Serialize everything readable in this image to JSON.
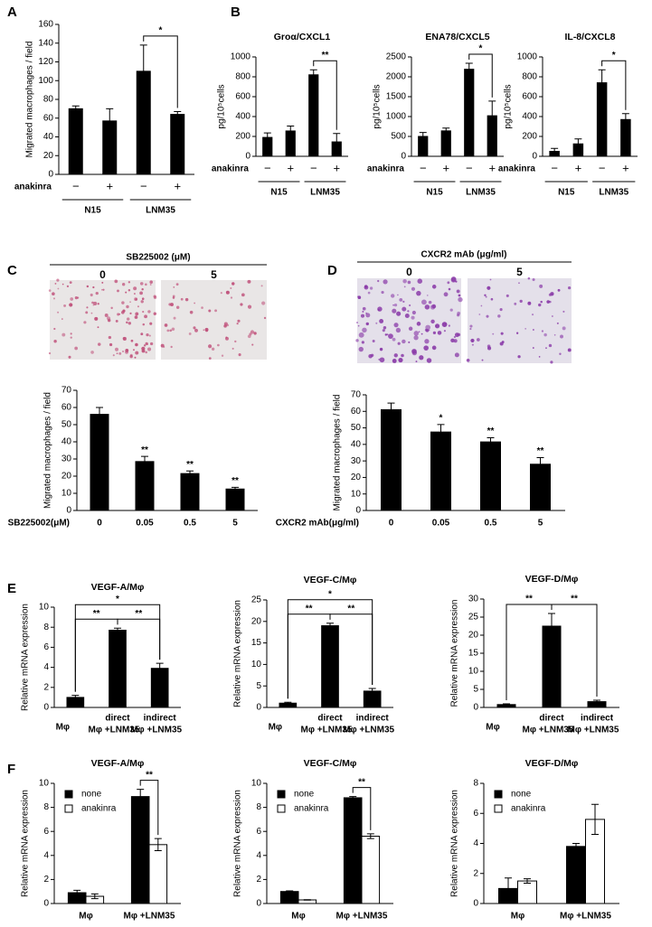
{
  "chart_data": [
    {
      "type": "bar",
      "panel": "A",
      "ylabel": "Migrated macrophages / field",
      "ylim": [
        0,
        160
      ],
      "yticks": [
        0,
        20,
        40,
        60,
        80,
        100,
        120,
        140,
        160
      ],
      "categories": [
        "−",
        "+",
        "−",
        "+"
      ],
      "category_label": "anakinra",
      "groups": [
        "N15",
        "LNM35"
      ],
      "series": [
        {
          "color": "#000000",
          "values": [
            70,
            57,
            110,
            64
          ],
          "errors": [
            3,
            13,
            28,
            3
          ]
        }
      ],
      "brackets": [
        {
          "label": "*",
          "from": 2,
          "to": 3
        }
      ]
    },
    {
      "type": "bar",
      "panel": "B",
      "title": "Groα/CXCL1",
      "ylabel": "pg/10⁵cells",
      "ylim": [
        0,
        1000
      ],
      "yticks": [
        0,
        200,
        400,
        600,
        800,
        1000
      ],
      "categories": [
        "−",
        "+",
        "−",
        "+"
      ],
      "category_label": "anakinra",
      "groups": [
        "N15",
        "LNM35"
      ],
      "series": [
        {
          "color": "#000000",
          "values": [
            190,
            255,
            820,
            145
          ],
          "errors": [
            45,
            50,
            50,
            85
          ]
        }
      ],
      "brackets": [
        {
          "label": "**",
          "from": 2,
          "to": 3
        }
      ]
    },
    {
      "type": "bar",
      "title": "ENA78/CXCL5",
      "ylabel": "pg/10⁵cells",
      "ylim": [
        0,
        2500
      ],
      "yticks": [
        0,
        500,
        1000,
        1500,
        2000,
        2500
      ],
      "categories": [
        "−",
        "+",
        "−",
        "+"
      ],
      "category_label": "anakinra",
      "groups": [
        "N15",
        "LNM35"
      ],
      "series": [
        {
          "color": "#000000",
          "values": [
            500,
            640,
            2190,
            1020
          ],
          "errors": [
            100,
            70,
            150,
            370
          ]
        }
      ],
      "brackets": [
        {
          "label": "*",
          "from": 2,
          "to": 3
        }
      ]
    },
    {
      "type": "bar",
      "title": "IL-8/CXCL8",
      "ylabel": "pg/10⁵cells",
      "ylim": [
        0,
        1000
      ],
      "yticks": [
        0,
        200,
        400,
        600,
        800,
        1000
      ],
      "categories": [
        "−",
        "+",
        "−",
        "+"
      ],
      "category_label": "anakinra",
      "groups": [
        "N15",
        "LNM35"
      ],
      "series": [
        {
          "color": "#000000",
          "values": [
            50,
            125,
            740,
            370
          ],
          "errors": [
            30,
            50,
            130,
            60
          ]
        }
      ],
      "brackets": [
        {
          "label": "*",
          "from": 2,
          "to": 3
        }
      ]
    },
    {
      "type": "bar",
      "panel": "C",
      "treatment": "SB225002 (μM)",
      "image_labels": [
        "0",
        "5"
      ],
      "ylabel": "Migrated macrophages / field",
      "ylim": [
        0,
        70
      ],
      "yticks": [
        0,
        10,
        20,
        30,
        40,
        50,
        60,
        70
      ],
      "categories": [
        "0",
        "0.05",
        "0.5",
        "5"
      ],
      "category_label": "SB225002(μM)",
      "series": [
        {
          "color": "#000000",
          "values": [
            56,
            28.5,
            21.5,
            12.5
          ],
          "errors": [
            4,
            3,
            1.5,
            1
          ]
        }
      ],
      "annotations": [
        null,
        "**",
        "**",
        "**"
      ]
    },
    {
      "type": "bar",
      "panel": "D",
      "treatment": "CXCR2 mAb (μg/ml)",
      "image_labels": [
        "0",
        "5"
      ],
      "ylabel": "Migrated macrophages / field",
      "ylim": [
        0,
        70
      ],
      "yticks": [
        0,
        10,
        20,
        30,
        40,
        50,
        60,
        70
      ],
      "categories": [
        "0",
        "0.05",
        "0.5",
        "5"
      ],
      "category_label": "CXCR2 mAb(μg/ml)",
      "series": [
        {
          "color": "#000000",
          "values": [
            61,
            47.5,
            41.5,
            28
          ],
          "errors": [
            4,
            4.5,
            2.5,
            4
          ]
        }
      ],
      "annotations": [
        null,
        "*",
        "**",
        "**"
      ]
    },
    {
      "type": "bar",
      "panel": "E",
      "title": "VEGF-A/Mφ",
      "ylabel": "Relative mRNA expression",
      "ylim": [
        0,
        10
      ],
      "yticks": [
        0,
        2,
        4,
        6,
        8,
        10
      ],
      "categories": [
        [
          "Mφ"
        ],
        [
          "direct",
          "Mφ +LNM35"
        ],
        [
          "indirect",
          "Mφ +LNM35"
        ]
      ],
      "series": [
        {
          "color": "#000000",
          "values": [
            1,
            7.7,
            3.9
          ],
          "errors": [
            0.2,
            0.2,
            0.5
          ]
        }
      ],
      "brackets": [
        {
          "label": "**",
          "from": 0,
          "to": 1
        },
        {
          "label": "**",
          "from": 1,
          "to": 2
        },
        {
          "label": "*",
          "from": 0,
          "to": 2
        }
      ]
    },
    {
      "type": "bar",
      "title": "VEGF-C/Mφ",
      "ylabel": "Relative mRNA expression",
      "ylim": [
        0,
        25
      ],
      "yticks": [
        0,
        5,
        10,
        15,
        20,
        25
      ],
      "categories": [
        [
          "Mφ"
        ],
        [
          "direct",
          "Mφ +LNM35"
        ],
        [
          "indirect",
          "Mφ +LNM35"
        ]
      ],
      "series": [
        {
          "color": "#000000",
          "values": [
            1,
            19,
            3.8
          ],
          "errors": [
            0.2,
            0.6,
            0.6
          ]
        }
      ],
      "brackets": [
        {
          "label": "**",
          "from": 0,
          "to": 1
        },
        {
          "label": "**",
          "from": 1,
          "to": 2
        },
        {
          "label": "*",
          "from": 0,
          "to": 2
        }
      ]
    },
    {
      "type": "bar",
      "title": "VEGF-D/Mφ",
      "ylabel": "Relative mRNA expression",
      "ylim": [
        0,
        30
      ],
      "yticks": [
        0,
        5,
        10,
        15,
        20,
        25,
        30
      ],
      "categories": [
        [
          "Mφ"
        ],
        [
          "direct",
          "Mφ +LNM35"
        ],
        [
          "indirect",
          "Mφ +LNM35"
        ]
      ],
      "series": [
        {
          "color": "#000000",
          "values": [
            0.8,
            22.5,
            1.6
          ],
          "errors": [
            0.2,
            3.5,
            0.4
          ]
        }
      ],
      "brackets": [
        {
          "label": "**",
          "from": 0,
          "to": 1
        },
        {
          "label": "**",
          "from": 1,
          "to": 2
        }
      ]
    },
    {
      "type": "bar",
      "panel": "F",
      "title": "VEGF-A/Mφ",
      "ylabel": "Relative mRNA expression",
      "ylim": [
        0,
        10
      ],
      "yticks": [
        0,
        2,
        4,
        6,
        8,
        10
      ],
      "categories": [
        "Mφ",
        "Mφ +LNM35"
      ],
      "legend": "upper left",
      "series": [
        {
          "name": "none",
          "color": "#000000",
          "values": [
            0.9,
            8.9
          ],
          "errors": [
            0.2,
            0.6
          ]
        },
        {
          "name": "anakinra",
          "color": "#ffffff",
          "values": [
            0.6,
            4.9
          ],
          "errors": [
            0.2,
            0.5
          ]
        }
      ],
      "brackets": [
        {
          "label": "**",
          "category": 1
        }
      ]
    },
    {
      "type": "bar",
      "title": "VEGF-C/Mφ",
      "ylabel": "Relative mRNA expression",
      "ylim": [
        0,
        10
      ],
      "yticks": [
        0,
        2,
        4,
        6,
        8,
        10
      ],
      "categories": [
        "Mφ",
        "Mφ +LNM35"
      ],
      "legend": "upper left",
      "series": [
        {
          "name": "none",
          "color": "#000000",
          "values": [
            1.0,
            8.8
          ],
          "errors": [
            0.05,
            0.1
          ]
        },
        {
          "name": "anakinra",
          "color": "#ffffff",
          "values": [
            0.3,
            5.6
          ],
          "errors": [
            0.02,
            0.2
          ]
        }
      ],
      "brackets": [
        {
          "label": "**",
          "category": 1
        }
      ]
    },
    {
      "type": "bar",
      "title": "VEGF-D/Mφ",
      "ylabel": "Relative mRNA expression",
      "ylim": [
        0,
        8
      ],
      "yticks": [
        0,
        2,
        4,
        6,
        8
      ],
      "categories": [
        "Mφ",
        "Mφ +LNM35"
      ],
      "legend": "upper left",
      "series": [
        {
          "name": "none",
          "color": "#000000",
          "values": [
            1.0,
            3.8
          ],
          "errors": [
            0.7,
            0.2
          ]
        },
        {
          "name": "anakinra",
          "color": "#ffffff",
          "values": [
            1.5,
            5.6
          ],
          "errors": [
            0.15,
            1.0
          ]
        }
      ]
    }
  ]
}
